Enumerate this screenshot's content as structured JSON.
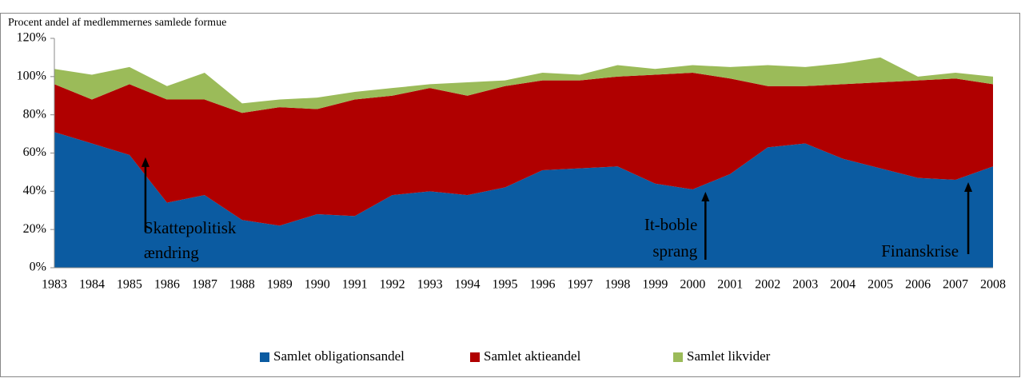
{
  "chart_data": {
    "type": "stacked_area",
    "y_axis_label": "Procent andel af medlemmernes samlede formue",
    "categories": [
      "1983",
      "1984",
      "1985",
      "1986",
      "1987",
      "1988",
      "1989",
      "1990",
      "1991",
      "1992",
      "1993",
      "1994",
      "1995",
      "1996",
      "1997",
      "1998",
      "1999",
      "2000",
      "2001",
      "2002",
      "2003",
      "2004",
      "2005",
      "2006",
      "2007",
      "2008"
    ],
    "series": [
      {
        "name": "Samlet obligationsandel",
        "color": "#0b5ba1",
        "values": [
          71,
          65,
          59,
          34,
          38,
          25,
          22,
          28,
          27,
          38,
          40,
          38,
          42,
          51,
          52,
          53,
          44,
          41,
          49,
          63,
          65,
          57,
          52,
          47,
          46,
          53
        ]
      },
      {
        "name": "Samlet aktieandel",
        "color": "#b00000",
        "values": [
          25,
          23,
          37,
          54,
          50,
          56,
          62,
          55,
          61,
          52,
          54,
          52,
          53,
          47,
          46,
          47,
          57,
          61,
          50,
          32,
          30,
          39,
          45,
          51,
          53,
          43
        ]
      },
      {
        "name": "Samlet likvider",
        "color": "#9bbb59",
        "values": [
          8,
          13,
          9,
          7,
          14,
          5,
          4,
          6,
          4,
          4,
          2,
          7,
          3,
          4,
          3,
          6,
          3,
          4,
          6,
          11,
          10,
          11,
          13,
          2,
          3,
          4
        ]
      }
    ],
    "ylim": [
      0,
      120
    ],
    "yticks": [
      {
        "value": 0,
        "label": "0%"
      },
      {
        "value": 20,
        "label": "20%"
      },
      {
        "value": 40,
        "label": "40%"
      },
      {
        "value": 60,
        "label": "60%"
      },
      {
        "value": 80,
        "label": "80%"
      },
      {
        "value": 100,
        "label": "100%"
      },
      {
        "value": 120,
        "label": "120%"
      }
    ],
    "legend": "bottom",
    "annotations": [
      {
        "at": "1985",
        "lines": [
          "Skattepolitisk",
          "ændring"
        ]
      },
      {
        "at": "2000",
        "lines": [
          "It-boble",
          "sprang"
        ]
      },
      {
        "at": "2007",
        "lines": [
          "Finanskrise"
        ]
      }
    ]
  }
}
